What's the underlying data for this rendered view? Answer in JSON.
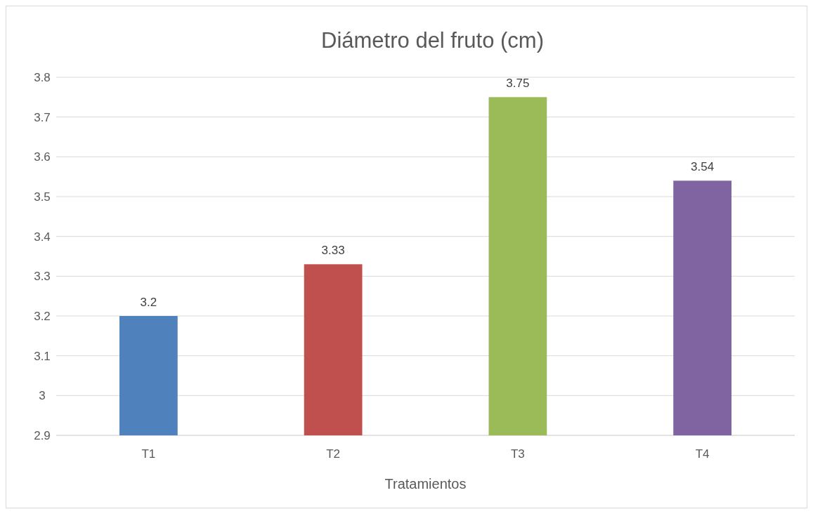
{
  "chart_data": {
    "type": "bar",
    "title": "Diámetro del fruto (cm)",
    "xlabel": "Tratamientos",
    "categories": [
      "T1",
      "T2",
      "T3",
      "T4"
    ],
    "values": [
      3.2,
      3.33,
      3.75,
      3.54
    ],
    "colors": [
      "#4f81bd",
      "#c0504d",
      "#9bbb59",
      "#8064a2"
    ],
    "ylim": [
      2.9,
      3.8
    ],
    "yticks": [
      2.9,
      3,
      3.1,
      3.2,
      3.3,
      3.4,
      3.5,
      3.6,
      3.7,
      3.8
    ],
    "grid": "y",
    "data_labels": true
  }
}
